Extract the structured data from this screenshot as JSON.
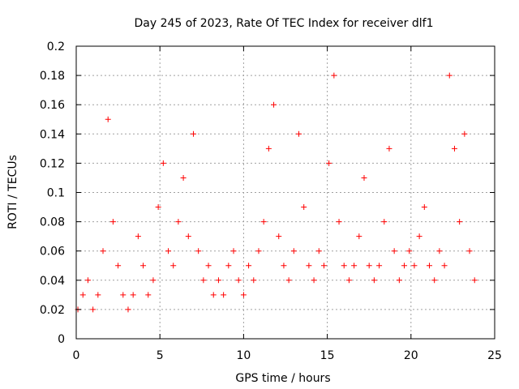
{
  "chart_data": {
    "type": "scatter",
    "title": "Day 245 of 2023, Rate Of TEC Index for receiver dlf1",
    "xlabel": "GPS time / hours",
    "ylabel": "ROTI / TECUs",
    "xlim": [
      0,
      25
    ],
    "ylim": [
      0,
      0.2
    ],
    "x_ticks": [
      "0",
      "5",
      "10",
      "15",
      "20",
      "25"
    ],
    "y_ticks": [
      "0",
      "0.02",
      "0.04",
      "0.06",
      "0.08",
      "0.1",
      "0.12",
      "0.14",
      "0.16",
      "0.18",
      "0.2"
    ],
    "grid": true,
    "marker": "+",
    "marker_color": "#ff0000",
    "series": [
      {
        "x": [
          0.1,
          0.4,
          0.7,
          1.0,
          1.3,
          1.6,
          1.9,
          2.2,
          2.5,
          2.8,
          3.1,
          3.4,
          3.7,
          4.0,
          4.3,
          4.6,
          4.9,
          5.2,
          5.5,
          5.8,
          6.1,
          6.4,
          6.7,
          7.0,
          7.3,
          7.6,
          7.9,
          8.2,
          8.5,
          8.8,
          9.1,
          9.4,
          9.7,
          10.0,
          10.3,
          10.6,
          10.9,
          11.2,
          11.5,
          11.8,
          12.1,
          12.4,
          12.7,
          13.0,
          13.3,
          13.6,
          13.9,
          14.2,
          14.5,
          14.8,
          15.1,
          15.4,
          15.7,
          16.0,
          16.3,
          16.6,
          16.9,
          17.2,
          17.5,
          17.8,
          18.1,
          18.4,
          18.7,
          19.0,
          19.3,
          19.6,
          19.9,
          20.2,
          20.5,
          20.8,
          21.1,
          21.4,
          21.7,
          22.0,
          22.3,
          22.6,
          22.9,
          23.2,
          23.5,
          23.8
        ],
        "values": [
          0.02,
          0.03,
          0.04,
          0.02,
          0.03,
          0.06,
          0.15,
          0.08,
          0.05,
          0.03,
          0.02,
          0.03,
          0.07,
          0.05,
          0.03,
          0.04,
          0.09,
          0.12,
          0.06,
          0.05,
          0.08,
          0.11,
          0.07,
          0.14,
          0.06,
          0.04,
          0.05,
          0.03,
          0.04,
          0.03,
          0.05,
          0.06,
          0.04,
          0.03,
          0.05,
          0.04,
          0.06,
          0.08,
          0.13,
          0.16,
          0.07,
          0.05,
          0.04,
          0.06,
          0.14,
          0.09,
          0.05,
          0.04,
          0.06,
          0.05,
          0.12,
          0.18,
          0.08,
          0.05,
          0.04,
          0.05,
          0.07,
          0.11,
          0.05,
          0.04,
          0.05,
          0.08,
          0.13,
          0.06,
          0.04,
          0.05,
          0.06,
          0.05,
          0.07,
          0.09,
          0.05,
          0.04,
          0.06,
          0.05,
          0.18,
          0.13,
          0.08,
          0.14,
          0.06,
          0.04
        ]
      }
    ]
  }
}
